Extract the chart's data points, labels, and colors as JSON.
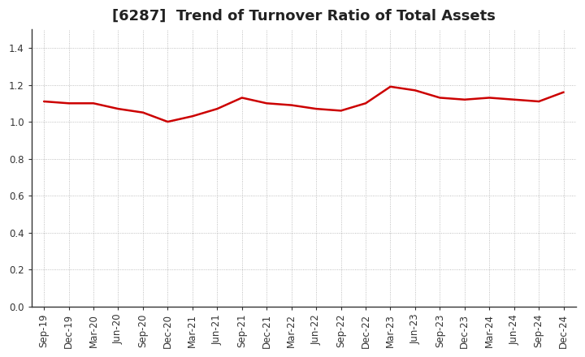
{
  "title": "[6287]  Trend of Turnover Ratio of Total Assets",
  "x_labels": [
    "Sep-19",
    "Dec-19",
    "Mar-20",
    "Jun-20",
    "Sep-20",
    "Dec-20",
    "Mar-21",
    "Jun-21",
    "Sep-21",
    "Dec-21",
    "Mar-22",
    "Jun-22",
    "Sep-22",
    "Dec-22",
    "Mar-23",
    "Jun-23",
    "Sep-23",
    "Dec-23",
    "Mar-24",
    "Jun-24",
    "Sep-24",
    "Dec-24"
  ],
  "y_values": [
    1.11,
    1.1,
    1.1,
    1.07,
    1.05,
    1.0,
    1.03,
    1.07,
    1.13,
    1.1,
    1.09,
    1.07,
    1.06,
    1.1,
    1.19,
    1.17,
    1.13,
    1.12,
    1.13,
    1.12,
    1.11,
    1.16
  ],
  "line_color": "#cc0000",
  "line_width": 1.8,
  "ylim": [
    0.0,
    1.5
  ],
  "yticks": [
    0.0,
    0.2,
    0.4,
    0.6,
    0.8,
    1.0,
    1.2,
    1.4
  ],
  "background_color": "#ffffff",
  "plot_bg_color": "#ffffff",
  "grid_color": "#999999",
  "title_fontsize": 13,
  "tick_fontsize": 8.5
}
